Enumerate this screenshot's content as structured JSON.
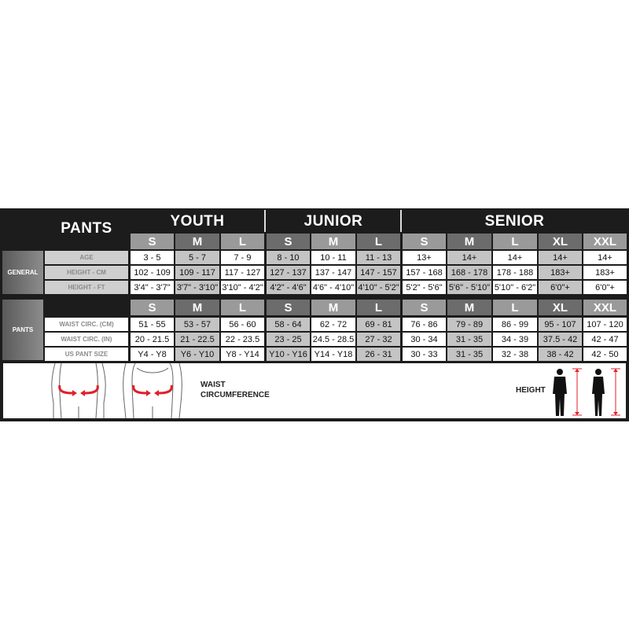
{
  "title": "PANTS",
  "groups": [
    {
      "title": "YOUTH",
      "sizes": [
        "S",
        "M",
        "L"
      ]
    },
    {
      "title": "JUNIOR",
      "sizes": [
        "S",
        "M",
        "L"
      ]
    },
    {
      "title": "SENIOR",
      "sizes": [
        "S",
        "M",
        "L",
        "XL",
        "XXL"
      ]
    }
  ],
  "general": {
    "label": "GENERAL",
    "rows": [
      {
        "label": "AGE",
        "values": [
          "3 - 5",
          "5 - 7",
          "7 - 9",
          "8 - 10",
          "10 - 11",
          "11 - 13",
          "13+",
          "14+",
          "14+",
          "14+",
          "14+"
        ]
      },
      {
        "label": "HEIGHT - CM",
        "values": [
          "102 - 109",
          "109 - 117",
          "117 - 127",
          "127 - 137",
          "137 - 147",
          "147 - 157",
          "157 - 168",
          "168 - 178",
          "178 - 188",
          "183+",
          "183+"
        ]
      },
      {
        "label": "HEIGHT - FT",
        "values": [
          "3'4\" - 3'7\"",
          "3'7\" - 3'10\"",
          "3'10\" - 4'2\"",
          "4'2\" - 4'6\"",
          "4'6\" - 4'10\"",
          "4'10\" - 5'2\"",
          "5'2\" - 5'6\"",
          "5'6\" - 5'10\"",
          "5'10\" - 6'2\"",
          "6'0\"+",
          "6'0\"+"
        ]
      }
    ]
  },
  "pants": {
    "label": "PANTS",
    "rows": [
      {
        "label": "WAIST CIRC. (CM)",
        "values": [
          "51 - 55",
          "53 - 57",
          "56 - 60",
          "58 - 64",
          "62 - 72",
          "69 - 81",
          "76 - 86",
          "79 - 89",
          "86 - 99",
          "95 - 107",
          "107 - 120"
        ]
      },
      {
        "label": "WAIST CIRC. (IN)",
        "values": [
          "20 - 21.5",
          "21 - 22.5",
          "22 - 23.5",
          "23 - 25",
          "24.5 - 28.5",
          "27 - 32",
          "30 - 34",
          "31 - 35",
          "34 - 39",
          "37.5 - 42",
          "42 - 47"
        ]
      },
      {
        "label": "US PANT SIZE",
        "values": [
          "Y4 - Y8",
          "Y6 - Y10",
          "Y8 - Y14",
          "Y10 - Y16",
          "Y14 - Y18",
          "26 - 31",
          "30 - 33",
          "31 - 35",
          "32 - 38",
          "38 - 42",
          "42 - 50"
        ]
      }
    ]
  },
  "legend": {
    "waist_line1": "WAIST",
    "waist_line2": "CIRCUMFERENCE",
    "height": "HEIGHT"
  },
  "colors": {
    "arrow": "#e0202a",
    "background": "#1c1c1c"
  }
}
